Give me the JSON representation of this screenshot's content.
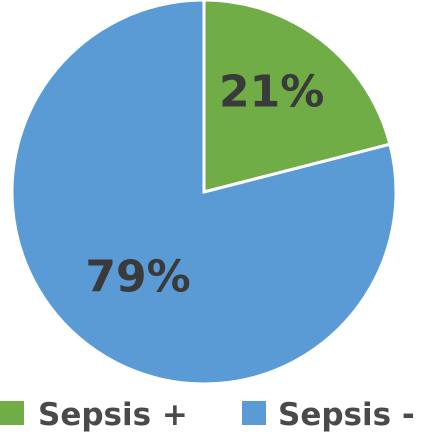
{
  "chart_data": {
    "type": "pie",
    "categories": [
      "Sepsis +",
      "Sepsis -"
    ],
    "values": [
      21,
      79
    ],
    "labels": [
      "21%",
      "79%"
    ],
    "colors": [
      "#70ad47",
      "#5b9bd5"
    ],
    "title": "",
    "legend_position": "bottom",
    "start_angle_deg": 0,
    "direction": "clockwise"
  }
}
